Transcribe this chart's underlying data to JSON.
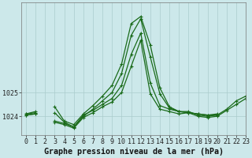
{
  "background_color": "#cce8ea",
  "grid_color": "#aacccc",
  "line_color": "#1a6b1a",
  "title": "Graphe pression niveau de la mer (hPa)",
  "xlim": [
    -0.5,
    23
  ],
  "ylim": [
    1023.2,
    1028.8
  ],
  "hours": [
    0,
    1,
    2,
    3,
    4,
    5,
    6,
    7,
    8,
    9,
    10,
    11,
    12,
    13,
    14,
    15,
    16,
    17,
    18,
    19,
    20,
    21,
    22,
    23
  ],
  "series1": [
    1024.1,
    1024.2,
    null,
    1024.4,
    1023.8,
    1023.65,
    1024.1,
    1024.45,
    1024.85,
    1025.3,
    1026.2,
    1027.9,
    1028.2,
    1027.0,
    1025.2,
    1024.4,
    1024.2,
    1024.15,
    1024.1,
    1024.05,
    1024.1,
    null,
    null,
    null
  ],
  "series2": [
    1024.1,
    1024.15,
    null,
    1024.15,
    1023.75,
    1023.55,
    1024.0,
    1024.3,
    1024.65,
    1025.0,
    1025.8,
    1027.4,
    1028.1,
    1026.5,
    1024.95,
    1024.35,
    1024.2,
    1024.15,
    1024.1,
    1024.05,
    1024.05,
    null,
    null,
    null
  ],
  "series3": [
    1024.05,
    1024.1,
    null,
    1023.8,
    1023.7,
    1023.55,
    1024.05,
    1024.25,
    1024.5,
    1024.75,
    1025.3,
    1026.6,
    1027.5,
    1025.4,
    1024.45,
    1024.3,
    1024.2,
    1024.2,
    1024.05,
    1024.0,
    1024.05,
    1024.3,
    1024.65,
    1024.85
  ],
  "series4": [
    1024.05,
    1024.1,
    null,
    1023.75,
    1023.65,
    1023.5,
    1023.95,
    1024.15,
    1024.4,
    1024.6,
    1025.0,
    1026.1,
    1027.2,
    1024.95,
    1024.3,
    1024.2,
    1024.1,
    1024.15,
    1024.0,
    1023.95,
    1024.0,
    1024.25,
    1024.5,
    1024.75
  ],
  "marker": "+",
  "markersize": 3.5,
  "linewidth": 0.9,
  "tick_fontsize": 6.0,
  "title_fontsize": 7.2,
  "xticks": [
    0,
    1,
    2,
    3,
    4,
    5,
    6,
    7,
    8,
    9,
    10,
    11,
    12,
    13,
    14,
    15,
    16,
    17,
    18,
    19,
    20,
    21,
    22,
    23
  ],
  "yticks": [
    1024,
    1025
  ]
}
